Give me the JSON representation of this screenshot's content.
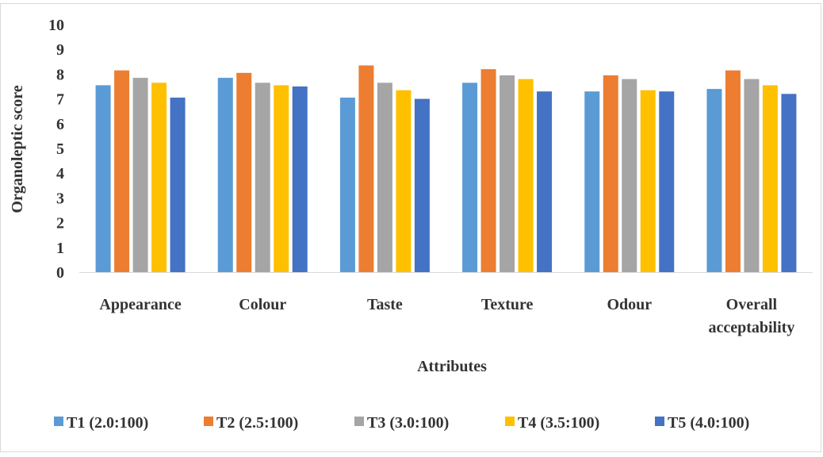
{
  "chart_data": {
    "type": "bar",
    "title": "",
    "xlabel": "Attributes",
    "ylabel": "Organoleptic score",
    "ylim": [
      0,
      10
    ],
    "yticks": [
      "0",
      "1",
      "2",
      "3",
      "4",
      "5",
      "6",
      "7",
      "8",
      "9",
      "10"
    ],
    "grid": false,
    "legend_position": "bottom",
    "categories": [
      [
        "Appearance"
      ],
      [
        "Colour"
      ],
      [
        "Taste"
      ],
      [
        "Texture"
      ],
      [
        "Odour"
      ],
      [
        "Overall",
        "acceptability"
      ]
    ],
    "series": [
      {
        "name": "T1 (2.0:100)",
        "color": "#5b9bd5",
        "values": [
          7.55,
          7.85,
          7.05,
          7.65,
          7.3,
          7.4
        ]
      },
      {
        "name": "T2 (2.5:100)",
        "color": "#ed7d31",
        "values": [
          8.15,
          8.05,
          8.35,
          8.2,
          7.95,
          8.15
        ]
      },
      {
        "name": "T3 (3.0:100)",
        "color": "#a5a5a5",
        "values": [
          7.85,
          7.65,
          7.65,
          7.95,
          7.8,
          7.8
        ]
      },
      {
        "name": "T4 (3.5:100)",
        "color": "#ffc000",
        "values": [
          7.65,
          7.55,
          7.35,
          7.8,
          7.35,
          7.55
        ]
      },
      {
        "name": "T5 (4.0:100)",
        "color": "#4472c4",
        "values": [
          7.05,
          7.5,
          7.0,
          7.3,
          7.3,
          7.2
        ]
      }
    ]
  }
}
